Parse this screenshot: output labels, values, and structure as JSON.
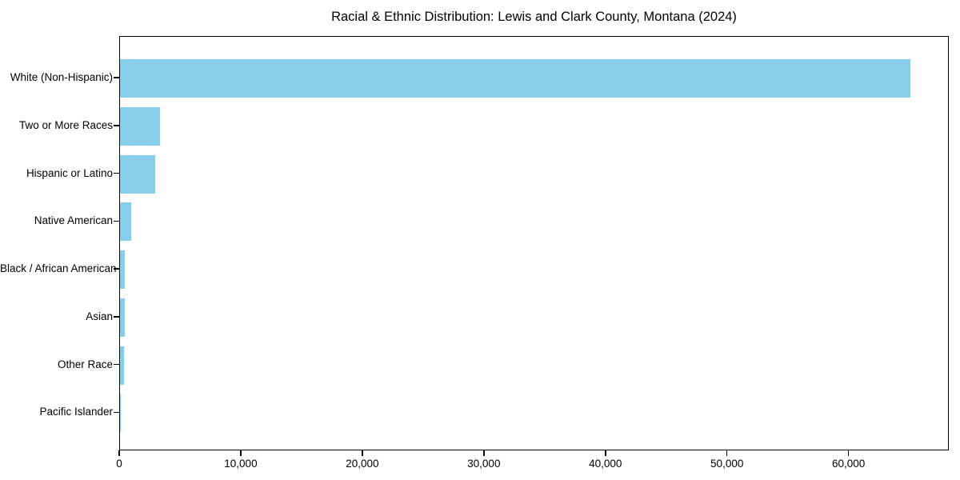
{
  "chart_data": {
    "type": "bar",
    "orientation": "horizontal",
    "title": "Racial & Ethnic Distribution: Lewis and Clark County, Montana (2024)",
    "categories": [
      "White (Non-Hispanic)",
      "Two or More Races",
      "Hispanic or Latino",
      "Native American",
      "Black / African American",
      "Asian",
      "Other Race",
      "Pacific Islander"
    ],
    "values": [
      65000,
      3300,
      2900,
      950,
      420,
      400,
      330,
      50
    ],
    "xlabel": "",
    "ylabel": "",
    "xlim": [
      0,
      68250
    ],
    "x_ticks": [
      0,
      10000,
      20000,
      30000,
      40000,
      50000,
      60000
    ],
    "x_tick_labels": [
      "0",
      "10,000",
      "20,000",
      "30,000",
      "40,000",
      "50,000",
      "60,000"
    ],
    "bar_color": "#87CEEB",
    "background_color": "#ffffff",
    "text_color": "#000000",
    "grid": false,
    "legend": null
  }
}
